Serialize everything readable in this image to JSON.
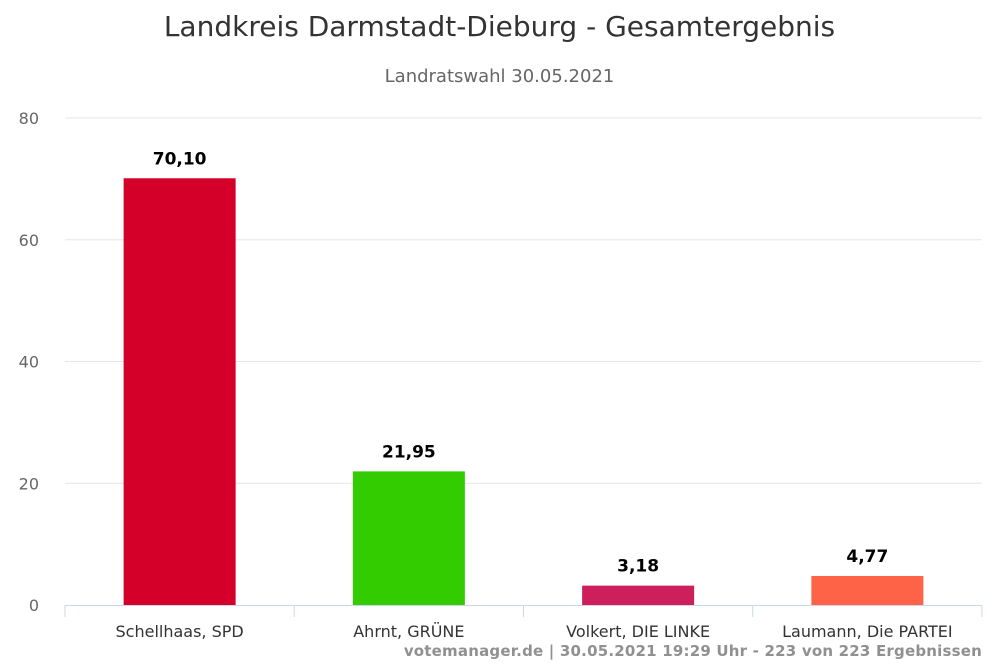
{
  "chart_data": {
    "type": "bar",
    "title": "Landkreis Darmstadt-Dieburg - Gesamtergebnis",
    "subtitle": "Landratswahl 30.05.2021",
    "categories": [
      "Schellhaas, SPD",
      "Ahrnt, GRÜNE",
      "Volkert, DIE LINKE",
      "Laumann, Die PARTEI"
    ],
    "values": [
      70.1,
      21.95,
      3.18,
      4.77
    ],
    "value_labels": [
      "70,10",
      "21,95",
      "3,18",
      "4,77"
    ],
    "colors": [
      "#d4002a",
      "#33cc00",
      "#cc1f5c",
      "#ff6347"
    ],
    "ylim": [
      0,
      80
    ],
    "yticks": [
      0,
      20,
      40,
      60,
      80
    ],
    "grid": true,
    "legend": false,
    "xlabel": "",
    "ylabel": ""
  },
  "credits": "votemanager.de | 30.05.2021 19:29 Uhr - 223 von 223 Ergebnissen"
}
